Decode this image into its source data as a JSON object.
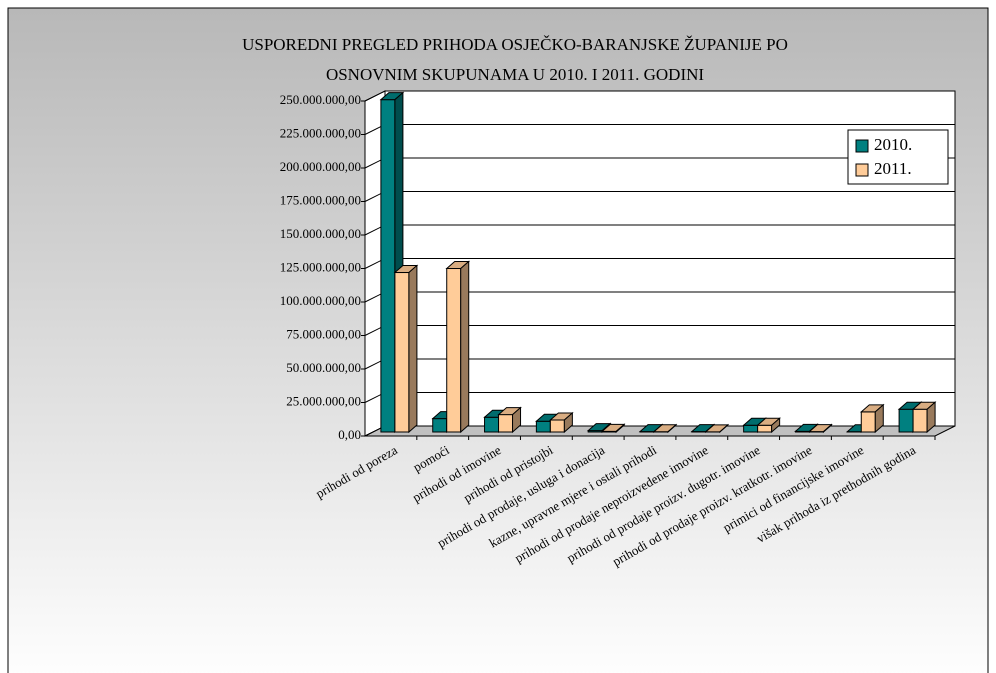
{
  "chart_data": {
    "type": "bar3d",
    "title": [
      "USPOREDNI PREGLED PRIHODA OSJEČKO-BARANJSKE ŽUPANIJE PO",
      "OSNOVNIM SKUPUNAMA U 2010. I 2011. GODINI"
    ],
    "categories": [
      "prihodi od poreza",
      "pomoći",
      "prihodi od imovine",
      "prihodi od pristojbi",
      "prihodi od prodaje, usluga i donacija",
      "kazne, upravne mjere i ostali prihodi",
      "prihodi od prodaje neproizvedene imovine",
      "prihodi od prodaje proizv. dugotr. imovine",
      "prihodi od prodaje proizv. kratkotr. imovine",
      "primici od financijske imovine",
      "višak prihoda iz prethodnih godina"
    ],
    "series": [
      {
        "name": "2010.",
        "color": "#008080",
        "values": [
          248000000,
          10000000,
          11000000,
          8000000,
          1000000,
          300000,
          300000,
          5000000,
          500000,
          200000,
          17000000
        ]
      },
      {
        "name": "2011.",
        "color": "#ffcc99",
        "values": [
          119000000,
          122000000,
          13000000,
          9000000,
          500000,
          200000,
          100000,
          5000000,
          300000,
          15000000,
          17000000
        ]
      }
    ],
    "ylim": [
      0,
      250000000
    ],
    "yticks": [
      {
        "value": 0,
        "label": "0,00"
      },
      {
        "value": 25000000,
        "label": "25.000.000,00"
      },
      {
        "value": 50000000,
        "label": "50.000.000,00"
      },
      {
        "value": 75000000,
        "label": "75.000.000,00"
      },
      {
        "value": 100000000,
        "label": "100.000.000,00"
      },
      {
        "value": 125000000,
        "label": "125.000.000,00"
      },
      {
        "value": 150000000,
        "label": "150.000.000,00"
      },
      {
        "value": 175000000,
        "label": "175.000.000,00"
      },
      {
        "value": 200000000,
        "label": "200.000.000,00"
      },
      {
        "value": 225000000,
        "label": "225.000.000,00"
      },
      {
        "value": 250000000,
        "label": "250.000.000,00"
      }
    ],
    "grid": true,
    "legend": "top-right"
  }
}
